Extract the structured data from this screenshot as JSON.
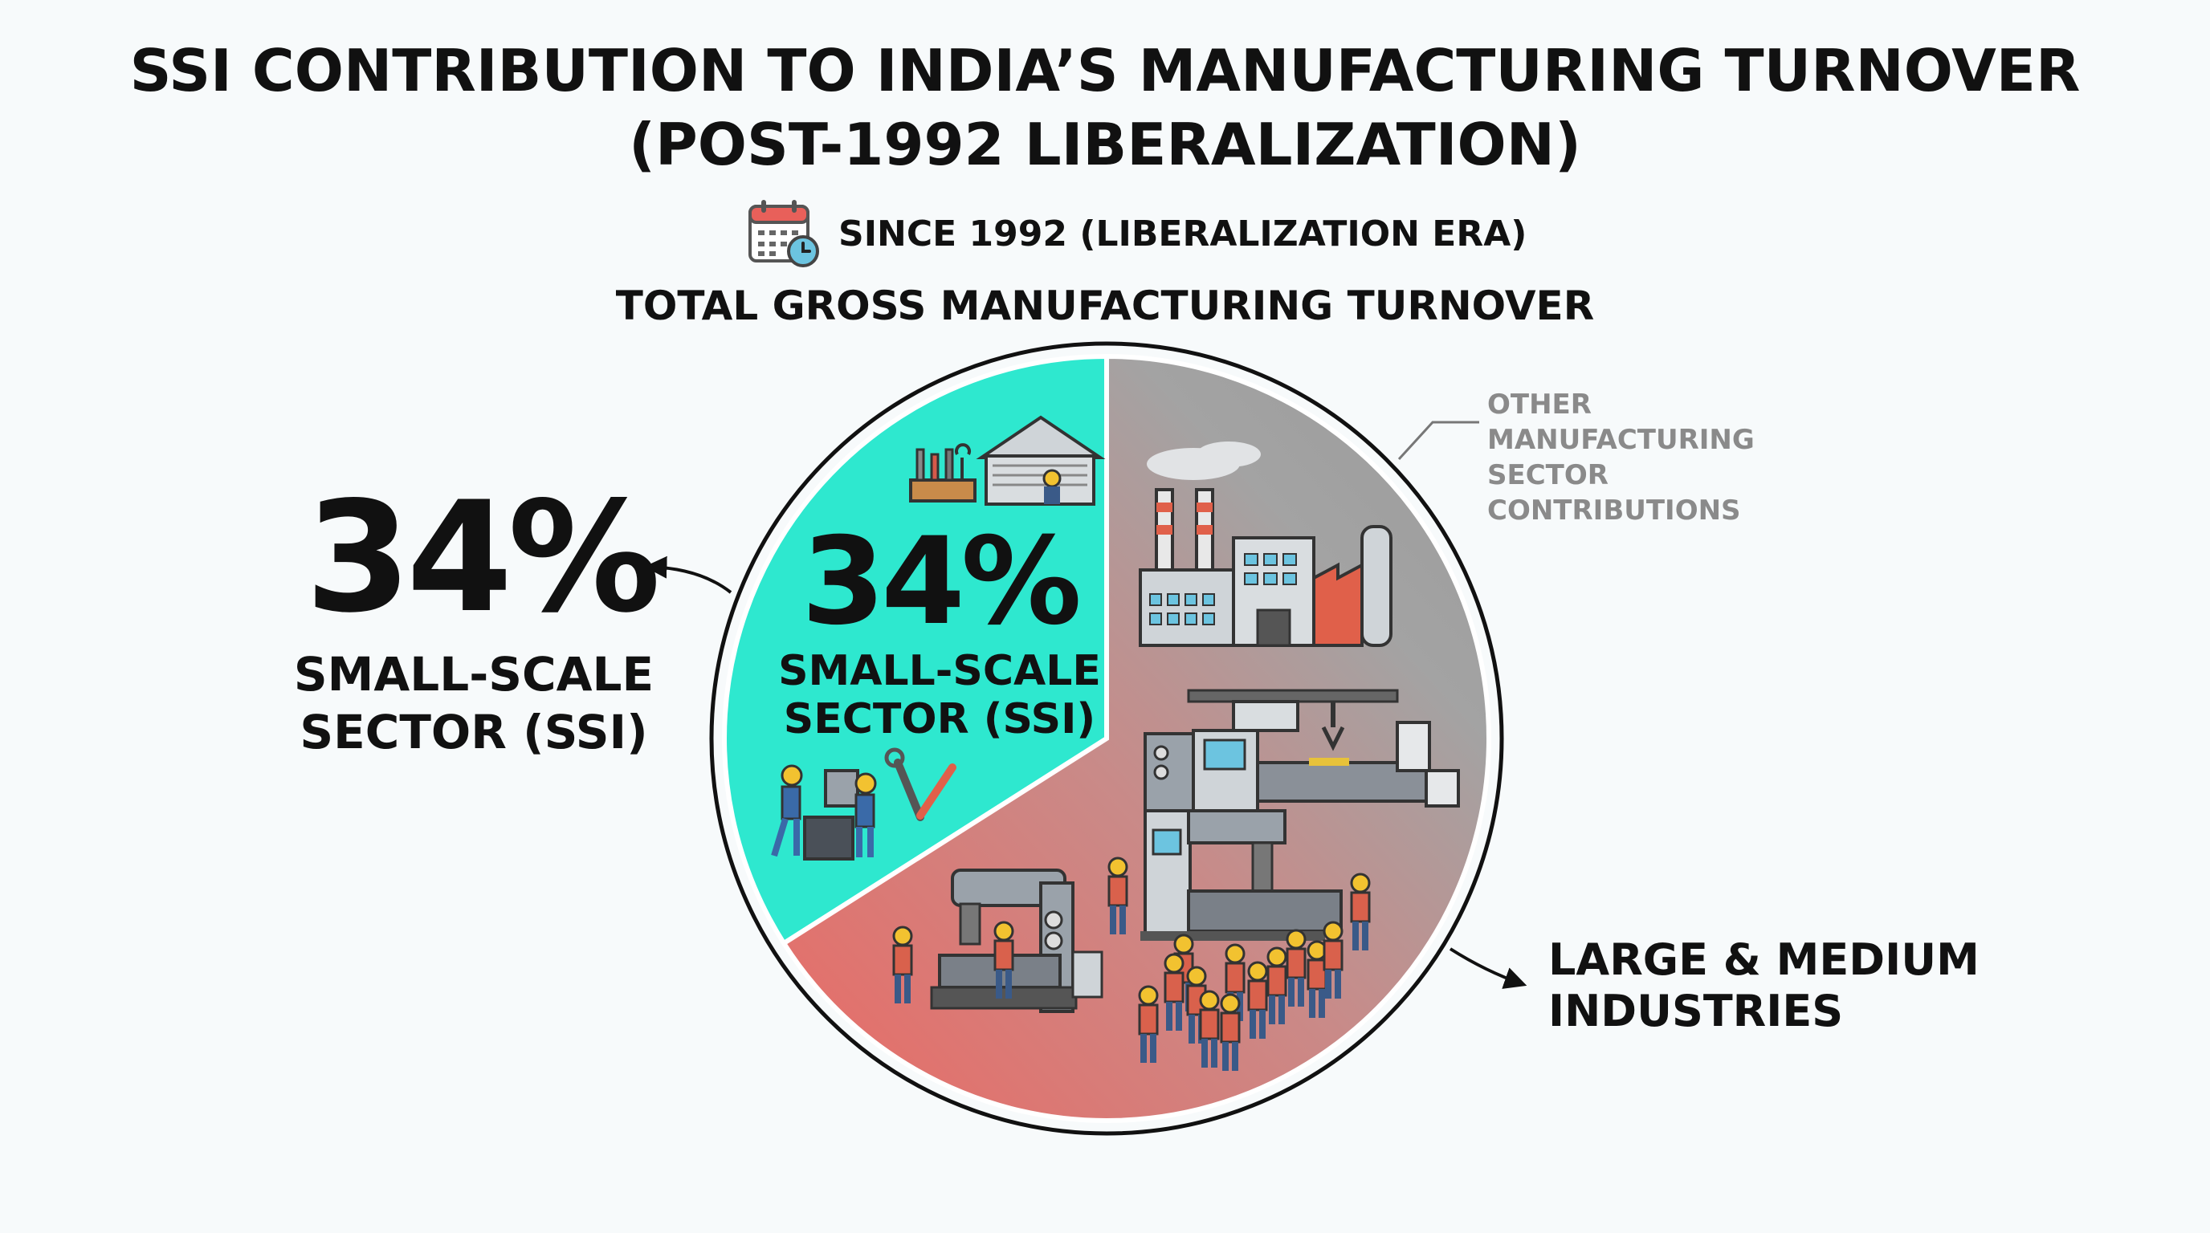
{
  "title_line1": "SSI CONTRIBUTION TO INDIA’S MANUFACTURING TURNOVER",
  "title_line2": "(POST-1992 LIBERALIZATION)",
  "since_text": "SINCE 1992 (LIBERALIZATION ERA)",
  "since_icon": "calendar-clock-icon",
  "chart_title": "TOTAL GROSS MANUFACTURING TURNOVER",
  "callout_left": {
    "value": "34%",
    "label_line1": "SMALL-SCALE",
    "label_line2": "SECTOR (SSI)"
  },
  "slice_ssi": {
    "value": "34%",
    "label_line1": "SMALL-SCALE",
    "label_line2": "SECTOR (SSI)"
  },
  "other_label_line1": "OTHER MANUFACTURING",
  "other_label_line2": "SECTOR CONTRIBUTIONS",
  "large_label_line1": "LARGE & MEDIUM",
  "large_label_line2": "INDUSTRIES",
  "colors": {
    "ssi": "#2ee8cf",
    "large_red": "#e8716c",
    "large_gray": "#9a9a9a",
    "outline": "#111111"
  },
  "chart_data": {
    "type": "pie",
    "title": "TOTAL GROSS MANUFACTURING TURNOVER",
    "categories": [
      "SMALL-SCALE SECTOR (SSI)",
      "LARGE & MEDIUM INDUSTRIES"
    ],
    "values": [
      34,
      66
    ],
    "unit": "%"
  }
}
